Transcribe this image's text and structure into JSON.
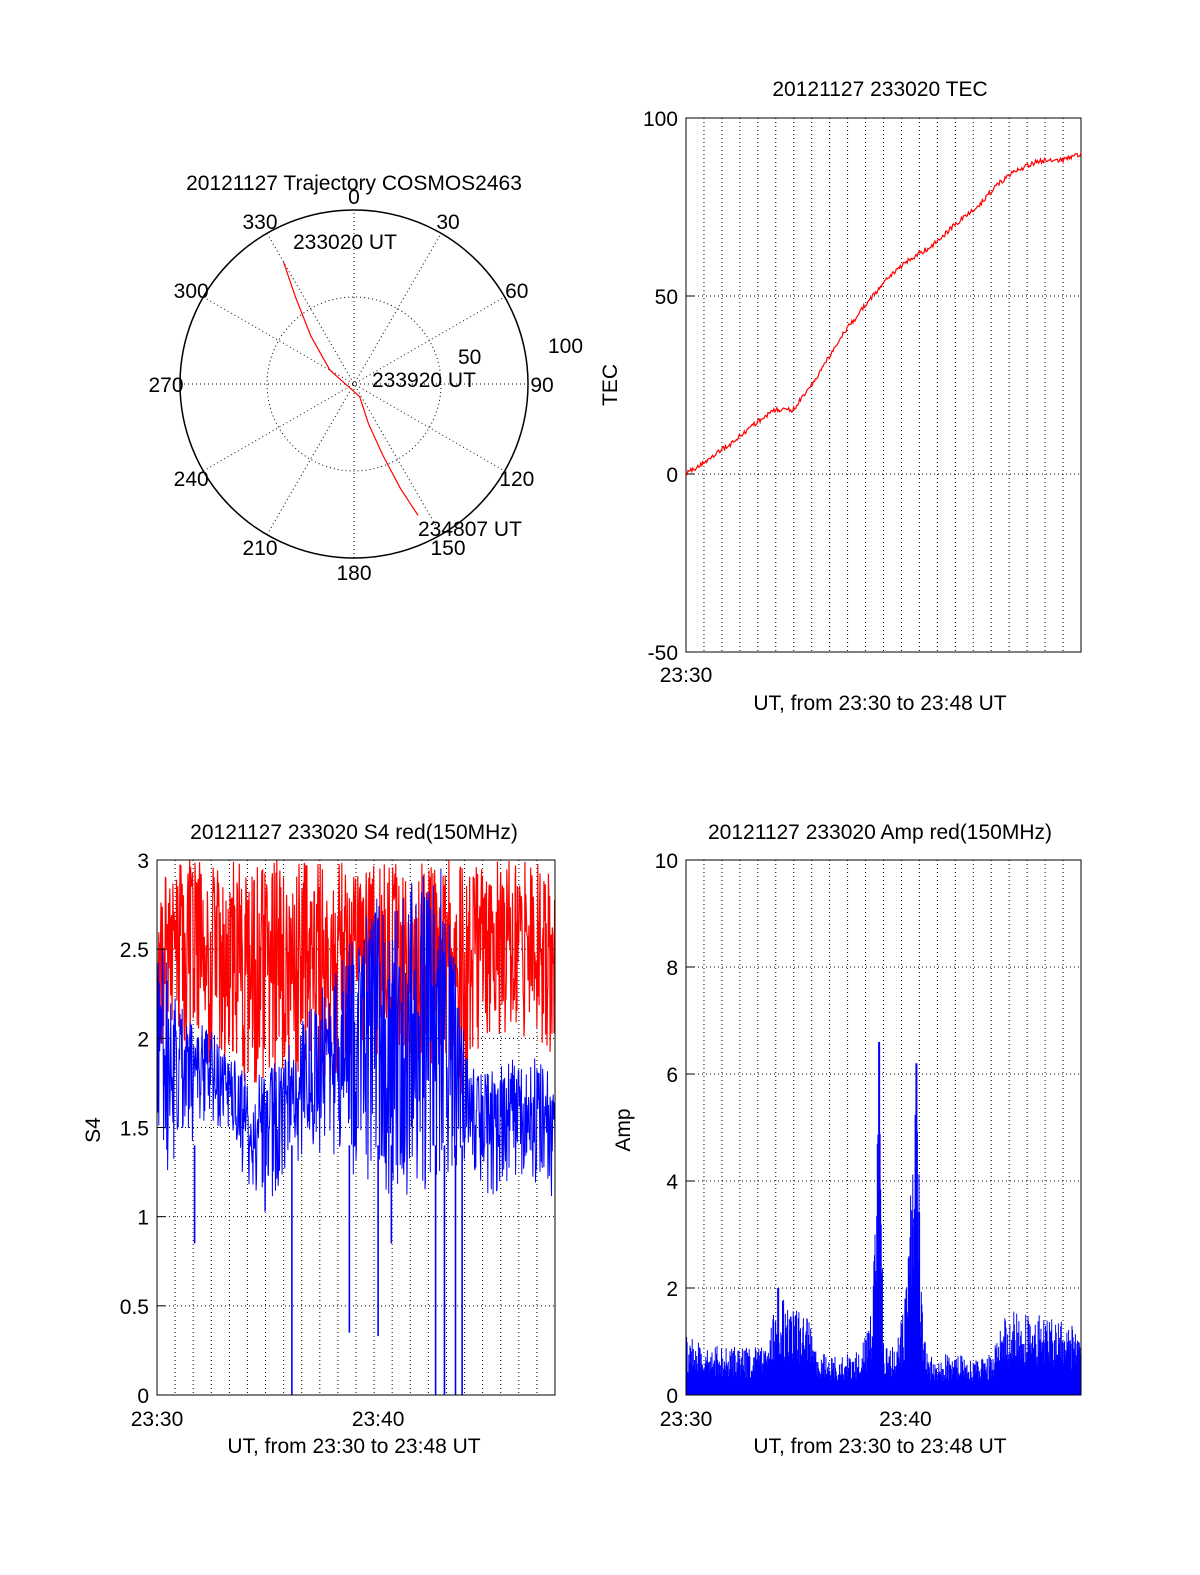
{
  "chart_data": [
    {
      "type": "polar",
      "title": "20121127 Trajectory COSMOS2463",
      "angle_labels": [
        "0",
        "30",
        "60",
        "90",
        "120",
        "150",
        "180",
        "210",
        "240",
        "270",
        "300",
        "330"
      ],
      "radial_labels": [
        "50",
        "100"
      ],
      "rlim": [
        0,
        100
      ],
      "grid": true,
      "series": [
        {
          "color": "#ff0000",
          "points": [
            {
              "az": 330,
              "el": 19
            },
            {
              "az": 326,
              "el": 40
            },
            {
              "az": 318,
              "el": 63
            },
            {
              "az": 300,
              "el": 84
            },
            {
              "az": 156,
              "el": 92
            },
            {
              "az": 160,
              "el": 76
            },
            {
              "az": 158,
              "el": 56
            },
            {
              "az": 156,
              "el": 34
            },
            {
              "az": 154,
              "el": 16
            }
          ]
        }
      ],
      "annotations": [
        {
          "text": "233020 UT",
          "az": 330,
          "el": 19
        },
        {
          "text": "233920 UT",
          "az": 156,
          "el": 92
        },
        {
          "text": "234807 UT",
          "az": 154,
          "el": 16
        }
      ]
    },
    {
      "type": "line",
      "title": "20121127 233020 TEC",
      "xlabel": "UT, from 23:30 to 23:48 UT",
      "ylabel": "TEC",
      "xlim": [
        "23:30",
        "23:48"
      ],
      "x_ticks": [
        "23:30"
      ],
      "ylim": [
        -50,
        100
      ],
      "y_ticks": [
        "-50",
        "0",
        "50",
        "100"
      ],
      "grid": true,
      "series": [
        {
          "color": "#ff0000",
          "x": [
            0,
            1,
            2,
            3,
            3.8,
            4.2,
            5,
            5.8,
            6.4,
            7.2,
            8.2,
            9.3,
            10.4,
            11.5,
            12.6,
            13.8,
            14.5,
            15.4,
            16.5,
            17.5,
            18.5
          ],
          "y": [
            0,
            4,
            8,
            13,
            16.5,
            18,
            18,
            24,
            30,
            38,
            46,
            54,
            60,
            64,
            70,
            76,
            81,
            85,
            88,
            88,
            90
          ]
        }
      ]
    },
    {
      "type": "line",
      "title": "20121127 233020 S4 red(150MHz)",
      "xlabel": "UT, from 23:30 to 23:48 UT",
      "ylabel": "S4",
      "xlim": [
        "23:30",
        "23:48"
      ],
      "x_ticks": [
        "23:30",
        "23:40"
      ],
      "ylim": [
        0,
        3
      ],
      "y_ticks": [
        "0",
        "0.5",
        "1",
        "1.5",
        "2",
        "2.5",
        "3"
      ],
      "grid": true,
      "series": [
        {
          "color": "#ff0000",
          "x": [
            0,
            1,
            2,
            3,
            4,
            5,
            6,
            7,
            8,
            9,
            10,
            11,
            12,
            13,
            14,
            15,
            16,
            17,
            18
          ],
          "y_min": [
            1.9,
            1.9,
            1.9,
            1.8,
            1.7,
            1.7,
            1.7,
            1.7,
            1.7,
            1.9,
            1.9,
            1.8,
            1.7,
            1.9,
            1.6,
            2.0,
            2.0,
            2.0,
            1.8
          ],
          "y_max": [
            3,
            3,
            3,
            3,
            3,
            3,
            3,
            3,
            3,
            3,
            3,
            3,
            3,
            3,
            3,
            3,
            3,
            3,
            3
          ]
        },
        {
          "color": "#0000ff",
          "x": [
            0,
            1,
            2,
            3,
            4,
            5,
            6,
            7,
            8,
            9,
            10,
            11,
            12,
            13,
            14,
            15,
            16,
            17,
            18
          ],
          "y_min": [
            1.2,
            1.3,
            1.5,
            1.5,
            1.2,
            1.0,
            1.3,
            1.3,
            1.3,
            1.2,
            1.2,
            1.0,
            1.1,
            1.1,
            1.3,
            1.1,
            1.2,
            1.1,
            1.1
          ],
          "y_max": [
            2.6,
            2.2,
            2.1,
            2.0,
            1.8,
            1.8,
            2.0,
            2.2,
            2.4,
            2.6,
            2.8,
            2.8,
            3.0,
            3.0,
            1.9,
            1.8,
            1.9,
            1.9,
            1.8
          ],
          "spikes": [
            {
              "x": 1.7,
              "y": 0.85
            },
            {
              "x": 6.1,
              "y": 0.0
            },
            {
              "x": 8.7,
              "y": 0.35
            },
            {
              "x": 10.0,
              "y": 0.33
            },
            {
              "x": 10.6,
              "y": 0.85
            },
            {
              "x": 12.6,
              "y": 0.0
            },
            {
              "x": 13.0,
              "y": 0.0
            },
            {
              "x": 13.5,
              "y": 0.0
            },
            {
              "x": 13.8,
              "y": 0.0
            }
          ]
        }
      ]
    },
    {
      "type": "line",
      "title": "20121127 233020 Amp red(150MHz)",
      "xlabel": "UT, from 23:30 to 23:48 UT",
      "ylabel": "Amp",
      "xlim": [
        "23:30",
        "23:48"
      ],
      "x_ticks": [
        "23:30",
        "23:40"
      ],
      "ylim": [
        0,
        10
      ],
      "y_ticks": [
        "0",
        "2",
        "4",
        "6",
        "8",
        "10"
      ],
      "grid": true,
      "series": [
        {
          "color": "#0000ff",
          "x": [
            0,
            1,
            2,
            3,
            3.7,
            4.2,
            5.0,
            5.6,
            6,
            7,
            8,
            8.5,
            8.8,
            9,
            9.5,
            10,
            10.5,
            10.8,
            11,
            11.5,
            12,
            13,
            14,
            14.4,
            15,
            16,
            17,
            18
          ],
          "y": [
            1.1,
            1.0,
            0.9,
            0.9,
            1.0,
            2.0,
            1.6,
            1.4,
            0.8,
            0.7,
            0.9,
            1.6,
            6.6,
            1.0,
            0.9,
            1.8,
            6.2,
            1.2,
            0.8,
            0.7,
            0.8,
            0.7,
            0.8,
            1.4,
            1.6,
            1.5,
            1.4,
            1.3
          ]
        }
      ]
    }
  ]
}
